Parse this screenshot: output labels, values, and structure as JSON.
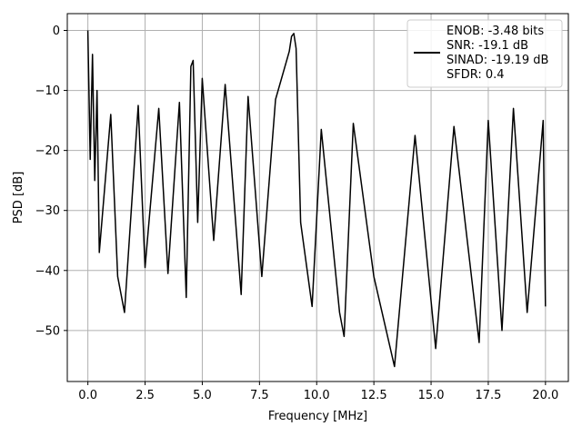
{
  "chart_data": {
    "type": "line",
    "xlabel": "Frequency [MHz]",
    "ylabel": "PSD [dB]",
    "xlim": [
      -0.9,
      21.0
    ],
    "ylim": [
      -58.5,
      2.8
    ],
    "xticks": [
      0.0,
      2.5,
      5.0,
      7.5,
      10.0,
      12.5,
      15.0,
      17.5,
      20.0
    ],
    "xtick_labels": [
      "0.0",
      "2.5",
      "5.0",
      "7.5",
      "10.0",
      "12.5",
      "15.0",
      "17.5",
      "20.0"
    ],
    "yticks": [
      0,
      -10,
      -20,
      -30,
      -40,
      -50
    ],
    "ytick_labels": [
      "0",
      "−10",
      "−20",
      "−30",
      "−40",
      "−50"
    ],
    "grid": true,
    "legend_position": "top-right",
    "legend_lines": [
      "ENOB: -3.48 bits",
      "SNR: -19.1 dB",
      "SINAD: -19.19 dB",
      "SFDR: 0.4"
    ],
    "series": [
      {
        "color": "#000000",
        "x": [
          0.0,
          0.1,
          0.2,
          0.3,
          0.4,
          0.5,
          1.0,
          1.3,
          1.6,
          2.2,
          2.5,
          3.1,
          3.5,
          4.0,
          4.3,
          4.5,
          4.6,
          4.8,
          5.0,
          5.5,
          6.0,
          6.7,
          7.0,
          7.6,
          8.2,
          8.8,
          8.9,
          9.0,
          9.1,
          9.3,
          9.8,
          10.2,
          11.0,
          11.2,
          11.6,
          12.5,
          13.4,
          14.3,
          15.2,
          16.0,
          17.1,
          17.5,
          18.1,
          18.6,
          19.2,
          19.9,
          20.0
        ],
        "y": [
          0.0,
          -21.5,
          -4.0,
          -25.0,
          -10.0,
          -37.0,
          -14.0,
          -41.0,
          -47.0,
          -12.5,
          -39.5,
          -13.0,
          -40.5,
          -12.0,
          -44.5,
          -6.0,
          -5.0,
          -32.0,
          -8.0,
          -35.0,
          -9.0,
          -44.0,
          -11.0,
          -41.0,
          -11.5,
          -3.5,
          -1.0,
          -0.5,
          -3.0,
          -32.0,
          -46.0,
          -16.5,
          -47.0,
          -51.0,
          -15.5,
          -41.0,
          -56.0,
          -17.5,
          -53.0,
          -16.0,
          -52.0,
          -15.0,
          -50.0,
          -13.0,
          -47.0,
          -15.0,
          -46.0
        ]
      }
    ]
  }
}
